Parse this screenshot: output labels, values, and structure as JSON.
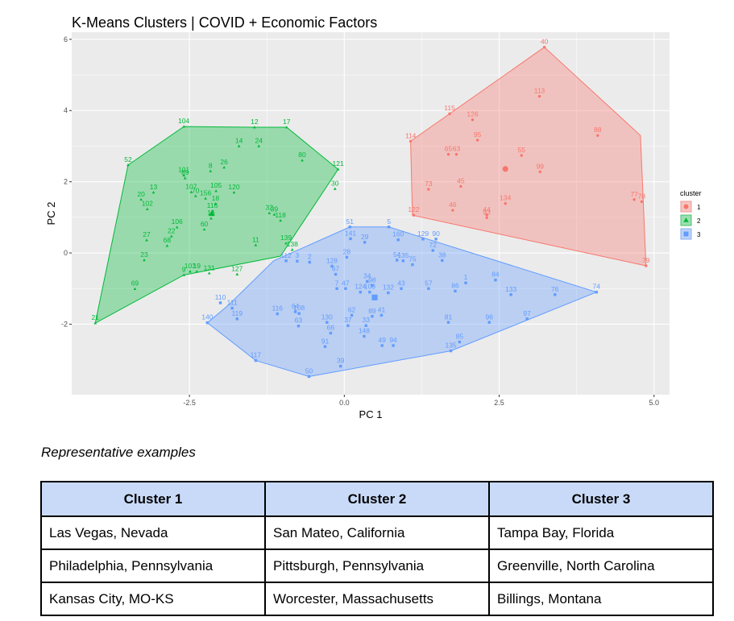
{
  "chart_data": {
    "type": "scatter",
    "title": "K-Means Clusters | COVID + Economic Factors",
    "xlabel": "PC 1",
    "ylabel": "PC 2",
    "xlim": [
      -4.4,
      5.25
    ],
    "ylim": [
      -3.98,
      6.2
    ],
    "x_ticks": [
      -2.5,
      0.0,
      2.5,
      5.0
    ],
    "x_tick_labels": [
      "-2.5",
      "0.0",
      "2.5",
      "5.0"
    ],
    "y_ticks": [
      -2,
      0,
      2,
      4,
      6
    ],
    "y_tick_labels": [
      "-2",
      "0",
      "2",
      "4",
      "6"
    ],
    "grid": true,
    "legend": {
      "title": "cluster",
      "position": "right",
      "entries": [
        "1",
        "2",
        "3"
      ]
    },
    "colors": {
      "1": "#f8766d",
      "2": "#00ba38",
      "3": "#619cff",
      "panel": "#ebebeb",
      "grid": "#ffffff"
    },
    "series": [
      {
        "name": "1",
        "shape": "circle",
        "hull": [
          [
            3.23,
            5.78
          ],
          [
            4.78,
            3.3
          ],
          [
            4.87,
            -0.36
          ],
          [
            1.1,
            1.06
          ],
          [
            1.07,
            3.14
          ],
          [
            1.7,
            3.91
          ]
        ],
        "points": [
          {
            "label": "40",
            "x": 3.23,
            "y": 5.78
          },
          {
            "label": "113",
            "x": 3.15,
            "y": 4.4
          },
          {
            "label": "115",
            "x": 1.7,
            "y": 3.91
          },
          {
            "label": "126",
            "x": 2.07,
            "y": 3.74
          },
          {
            "label": "88",
            "x": 4.09,
            "y": 3.3
          },
          {
            "label": "114",
            "x": 1.07,
            "y": 3.14
          },
          {
            "label": "95",
            "x": 2.15,
            "y": 3.17
          },
          {
            "label": "63",
            "x": 1.81,
            "y": 2.77
          },
          {
            "label": "65",
            "x": 1.68,
            "y": 2.77
          },
          {
            "label": "55",
            "x": 2.86,
            "y": 2.74
          },
          {
            "label": "99",
            "x": 3.16,
            "y": 2.28
          },
          {
            "label": "73",
            "x": 1.36,
            "y": 1.79
          },
          {
            "label": "45",
            "x": 1.88,
            "y": 1.87
          },
          {
            "label": "134",
            "x": 2.6,
            "y": 1.39
          },
          {
            "label": "77",
            "x": 4.68,
            "y": 1.5
          },
          {
            "label": "78",
            "x": 4.8,
            "y": 1.44
          },
          {
            "label": "46",
            "x": 1.75,
            "y": 1.2
          },
          {
            "label": "122",
            "x": 1.12,
            "y": 1.06
          },
          {
            "label": "44",
            "x": 2.3,
            "y": 1.07
          },
          {
            "label": "93",
            "x": 2.3,
            "y": 0.99
          },
          {
            "label": "79",
            "x": 4.87,
            "y": -0.36
          }
        ],
        "centroid": {
          "x": 2.6,
          "y": 2.36
        }
      },
      {
        "name": "2",
        "shape": "triangle",
        "hull": [
          [
            -4.02,
            -1.97
          ],
          [
            -3.49,
            2.47
          ],
          [
            -2.59,
            3.55
          ],
          [
            -1.45,
            3.53
          ],
          [
            -0.93,
            3.53
          ],
          [
            -0.1,
            2.35
          ],
          [
            -1.03,
            -0.09
          ],
          [
            -2.59,
            -0.62
          ]
        ],
        "points": [
          {
            "label": "104",
            "x": -2.59,
            "y": 3.55
          },
          {
            "label": "12",
            "x": -1.45,
            "y": 3.53
          },
          {
            "label": "17",
            "x": -0.93,
            "y": 3.53
          },
          {
            "label": "14",
            "x": -1.7,
            "y": 3.0
          },
          {
            "label": "24",
            "x": -1.38,
            "y": 3.0
          },
          {
            "label": "80",
            "x": -0.68,
            "y": 2.6
          },
          {
            "label": "52",
            "x": -3.49,
            "y": 2.47
          },
          {
            "label": "8",
            "x": -2.16,
            "y": 2.3
          },
          {
            "label": "26",
            "x": -1.94,
            "y": 2.4
          },
          {
            "label": "121",
            "x": -0.1,
            "y": 2.35
          },
          {
            "label": "101",
            "x": -2.59,
            "y": 2.18
          },
          {
            "label": "89",
            "x": -2.57,
            "y": 2.1
          },
          {
            "label": "30",
            "x": -0.15,
            "y": 1.8
          },
          {
            "label": "13",
            "x": -3.08,
            "y": 1.7
          },
          {
            "label": "107",
            "x": -2.47,
            "y": 1.71
          },
          {
            "label": "70",
            "x": -2.4,
            "y": 1.6
          },
          {
            "label": "105",
            "x": -2.07,
            "y": 1.74
          },
          {
            "label": "120",
            "x": -1.78,
            "y": 1.7
          },
          {
            "label": "20",
            "x": -3.28,
            "y": 1.5
          },
          {
            "label": "156",
            "x": -2.24,
            "y": 1.53
          },
          {
            "label": "18",
            "x": -2.08,
            "y": 1.38
          },
          {
            "label": "102",
            "x": -3.18,
            "y": 1.23
          },
          {
            "label": "32",
            "x": -1.21,
            "y": 1.12
          },
          {
            "label": "39",
            "x": -1.13,
            "y": 1.08
          },
          {
            "label": "116",
            "x": -2.13,
            "y": 1.18
          },
          {
            "label": "16",
            "x": -2.15,
            "y": 0.97
          },
          {
            "label": "118",
            "x": -1.03,
            "y": 0.91
          },
          {
            "label": "60",
            "x": -2.26,
            "y": 0.66
          },
          {
            "label": "106",
            "x": -2.7,
            "y": 0.72
          },
          {
            "label": "27",
            "x": -3.19,
            "y": 0.36
          },
          {
            "label": "22",
            "x": -2.79,
            "y": 0.47
          },
          {
            "label": "139",
            "x": -0.94,
            "y": 0.27
          },
          {
            "label": "11",
            "x": -1.43,
            "y": 0.22
          },
          {
            "label": "138",
            "x": -0.84,
            "y": 0.09
          },
          {
            "label": "68",
            "x": -2.86,
            "y": 0.2
          },
          {
            "label": "23",
            "x": -3.23,
            "y": -0.2
          },
          {
            "label": "103",
            "x": -2.49,
            "y": -0.52
          },
          {
            "label": "19",
            "x": -2.38,
            "y": -0.52
          },
          {
            "label": "131",
            "x": -2.18,
            "y": -0.57
          },
          {
            "label": "9",
            "x": -2.59,
            "y": -0.62
          },
          {
            "label": "127",
            "x": -1.73,
            "y": -0.6
          },
          {
            "label": "69",
            "x": -3.38,
            "y": -1.01
          },
          {
            "label": "21",
            "x": -4.02,
            "y": -1.97
          }
        ],
        "centroid": {
          "x": -2.14,
          "y": 1.1
        }
      },
      {
        "name": "3",
        "shape": "square",
        "hull": [
          [
            -0.57,
            -3.47
          ],
          [
            1.72,
            -2.75
          ],
          [
            4.07,
            -1.1
          ],
          [
            0.72,
            0.73
          ],
          [
            0.09,
            0.73
          ],
          [
            -1.14,
            -0.22
          ],
          [
            -1.86,
            -1.45
          ],
          [
            -2.21,
            -1.96
          ],
          [
            -1.43,
            -3.02
          ]
        ],
        "points": [
          {
            "label": "51",
            "x": 0.09,
            "y": 0.73
          },
          {
            "label": "5",
            "x": 0.72,
            "y": 0.73
          },
          {
            "label": "141",
            "x": 0.1,
            "y": 0.4
          },
          {
            "label": "29",
            "x": 0.33,
            "y": 0.3
          },
          {
            "label": "160",
            "x": 0.87,
            "y": 0.37
          },
          {
            "label": "129",
            "x": 1.27,
            "y": 0.39
          },
          {
            "label": "90",
            "x": 1.48,
            "y": 0.39
          },
          {
            "label": "72",
            "x": 1.43,
            "y": 0.07
          },
          {
            "label": "38",
            "x": 1.58,
            "y": -0.21
          },
          {
            "label": "28",
            "x": 0.04,
            "y": -0.12
          },
          {
            "label": "112",
            "x": -0.94,
            "y": -0.22
          },
          {
            "label": "3",
            "x": -0.76,
            "y": -0.23
          },
          {
            "label": "2",
            "x": -0.56,
            "y": -0.26
          },
          {
            "label": "128",
            "x": -0.2,
            "y": -0.37
          },
          {
            "label": "54",
            "x": 0.85,
            "y": -0.2
          },
          {
            "label": "135",
            "x": 0.95,
            "y": -0.22
          },
          {
            "label": "75",
            "x": 1.1,
            "y": -0.33
          },
          {
            "label": "67",
            "x": -0.14,
            "y": -0.6
          },
          {
            "label": "34",
            "x": 0.37,
            "y": -0.8
          },
          {
            "label": "98",
            "x": 0.45,
            "y": -0.91
          },
          {
            "label": "7",
            "x": -0.12,
            "y": -1.0
          },
          {
            "label": "47",
            "x": 0.02,
            "y": -1.0
          },
          {
            "label": "124",
            "x": 0.26,
            "y": -1.1
          },
          {
            "label": "108",
            "x": 0.41,
            "y": -1.1
          },
          {
            "label": "132",
            "x": 0.71,
            "y": -1.12
          },
          {
            "label": "43",
            "x": 0.92,
            "y": -1.0
          },
          {
            "label": "57",
            "x": 1.36,
            "y": -1.0
          },
          {
            "label": "1",
            "x": 1.96,
            "y": -0.84
          },
          {
            "label": "86",
            "x": 1.79,
            "y": -1.07
          },
          {
            "label": "84",
            "x": 2.44,
            "y": -0.76
          },
          {
            "label": "133",
            "x": 2.69,
            "y": -1.17
          },
          {
            "label": "76",
            "x": 3.4,
            "y": -1.17
          },
          {
            "label": "74",
            "x": 4.07,
            "y": -1.1
          },
          {
            "label": "110",
            "x": -2.0,
            "y": -1.4
          },
          {
            "label": "111",
            "x": -1.81,
            "y": -1.55
          },
          {
            "label": "119",
            "x": -1.73,
            "y": -1.85
          },
          {
            "label": "140",
            "x": -2.21,
            "y": -1.96
          },
          {
            "label": "64",
            "x": -0.79,
            "y": -1.65
          },
          {
            "label": "108",
            "x": -0.73,
            "y": -1.7
          },
          {
            "label": "116",
            "x": -1.08,
            "y": -1.71
          },
          {
            "label": "63",
            "x": -0.74,
            "y": -2.05
          },
          {
            "label": "130",
            "x": -0.28,
            "y": -1.95
          },
          {
            "label": "62",
            "x": 0.12,
            "y": -1.75
          },
          {
            "label": "89",
            "x": 0.45,
            "y": -1.78
          },
          {
            "label": "41",
            "x": 0.6,
            "y": -1.75
          },
          {
            "label": "37",
            "x": 0.06,
            "y": -2.04
          },
          {
            "label": "33",
            "x": 0.35,
            "y": -2.04
          },
          {
            "label": "66",
            "x": -0.22,
            "y": -2.25
          },
          {
            "label": "91",
            "x": -0.31,
            "y": -2.63
          },
          {
            "label": "148",
            "x": 0.32,
            "y": -2.34
          },
          {
            "label": "49",
            "x": 0.61,
            "y": -2.6
          },
          {
            "label": "94",
            "x": 0.79,
            "y": -2.6
          },
          {
            "label": "81",
            "x": 1.68,
            "y": -1.95
          },
          {
            "label": "96",
            "x": 2.34,
            "y": -1.95
          },
          {
            "label": "97",
            "x": 2.95,
            "y": -1.85
          },
          {
            "label": "85",
            "x": 1.86,
            "y": -2.5
          },
          {
            "label": "135",
            "x": 1.72,
            "y": -2.75
          },
          {
            "label": "117",
            "x": -1.43,
            "y": -3.02
          },
          {
            "label": "39",
            "x": -0.06,
            "y": -3.18
          },
          {
            "label": "50",
            "x": -0.57,
            "y": -3.47
          }
        ],
        "centroid": {
          "x": 0.49,
          "y": -1.25
        }
      }
    ]
  },
  "caption": "Representative examples",
  "table": {
    "headers": [
      "Cluster 1",
      "Cluster 2",
      "Cluster 3"
    ],
    "rows": [
      [
        "Las Vegas, Nevada",
        "San Mateo, California",
        "Tampa Bay, Florida"
      ],
      [
        "Philadelphia, Pennsylvania",
        "Pittsburgh, Pennsylvania",
        "Greenville, North Carolina"
      ],
      [
        "Kansas City, MO-KS",
        "Worcester, Massachusetts",
        "Billings, Montana"
      ]
    ]
  }
}
